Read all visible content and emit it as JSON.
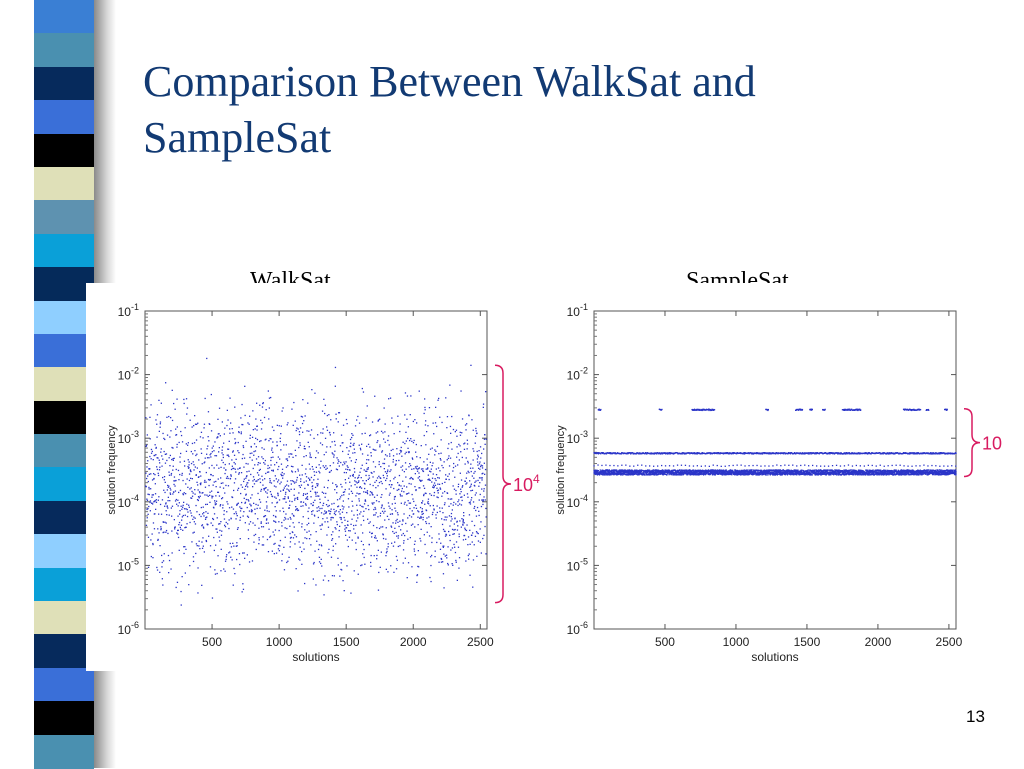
{
  "slide": {
    "title_line1": "Comparison Between WalkSat and",
    "title_line2": "SampleSat",
    "page_number": "13"
  },
  "decor": {
    "stripe_colors": [
      "#3a7fd4",
      "#4a90b0",
      "#062a5c",
      "#3a6fd8",
      "#000000",
      "#dfe0b8",
      "#5e92b0",
      "#0aa0d8",
      "#052a5a",
      "#8fcfff",
      "#3a6fd8",
      "#dfe0b8",
      "#000000",
      "#4a90b0",
      "#0aa0d8",
      "#062a5c",
      "#8fcfff",
      "#0aa0d8",
      "#dfe0b8",
      "#062a5c",
      "#3a6fd8",
      "#000000",
      "#4a90b0"
    ]
  },
  "chart_data": [
    {
      "type": "scatter",
      "title": "WalkSat",
      "xlabel": "solutions",
      "ylabel": "solution frequency",
      "xlim": [
        0,
        2550
      ],
      "ylim": [
        1e-06,
        0.1
      ],
      "log_y": true,
      "grid": false,
      "x_ticks": [
        500,
        1000,
        1500,
        2000,
        2500
      ],
      "y_ticks": [
        {
          "base": "10",
          "exp": "-1"
        },
        {
          "base": "10",
          "exp": "-2"
        },
        {
          "base": "10",
          "exp": "-3"
        },
        {
          "base": "10",
          "exp": "-4"
        },
        {
          "base": "10",
          "exp": "-5"
        },
        {
          "base": "10",
          "exp": "-6"
        }
      ],
      "n_points": 2500,
      "point_color": "#2b35c8",
      "distribution": {
        "kind": "uniform_log",
        "y_min": 2e-06,
        "y_max": 0.012
      },
      "outliers": [
        {
          "x": 460,
          "y": 0.018
        },
        {
          "x": 2430,
          "y": 0.014
        },
        {
          "x": 1420,
          "y": 0.013
        }
      ],
      "annotation": {
        "text_base": "10",
        "text_exp": "4",
        "spans_y": [
          2.6e-06,
          0.014
        ],
        "color": "#d81b60"
      }
    },
    {
      "type": "scatter",
      "title": "SampleSat",
      "xlabel": "solutions",
      "ylabel": "solution frequency",
      "xlim": [
        0,
        2550
      ],
      "ylim": [
        1e-06,
        0.1
      ],
      "log_y": true,
      "grid": false,
      "x_ticks": [
        500,
        1000,
        1500,
        2000,
        2500
      ],
      "y_ticks": [
        {
          "base": "10",
          "exp": "-1"
        },
        {
          "base": "10",
          "exp": "-2"
        },
        {
          "base": "10",
          "exp": "-3"
        },
        {
          "base": "10",
          "exp": "-4"
        },
        {
          "base": "10",
          "exp": "-5"
        },
        {
          "base": "10",
          "exp": "-6"
        }
      ],
      "n_points": 2500,
      "point_color": "#2b35c8",
      "levels": [
        {
          "y": 0.0028,
          "x_segments": [
            [
              30,
              50
            ],
            [
              460,
              480
            ],
            [
              690,
              850
            ],
            [
              1210,
              1230
            ],
            [
              1420,
              1470
            ],
            [
              1520,
              1540
            ],
            [
              1610,
              1630
            ],
            [
              1750,
              1880
            ],
            [
              2180,
              2300
            ],
            [
              2340,
              2360
            ],
            [
              2470,
              2490
            ]
          ]
        },
        {
          "y": 0.00058,
          "x_segments": [
            [
              0,
              2550
            ]
          ]
        },
        {
          "y": 0.00037,
          "x_segments": [
            [
              0,
              2550
            ]
          ],
          "sparse": true
        },
        {
          "y": 0.00029,
          "x_segments": [
            [
              0,
              2550
            ]
          ],
          "dense": true
        }
      ],
      "annotation": {
        "text_base": "10",
        "text_exp": "",
        "spans_y": [
          0.00025,
          0.0029
        ],
        "color": "#d81b60"
      }
    }
  ]
}
